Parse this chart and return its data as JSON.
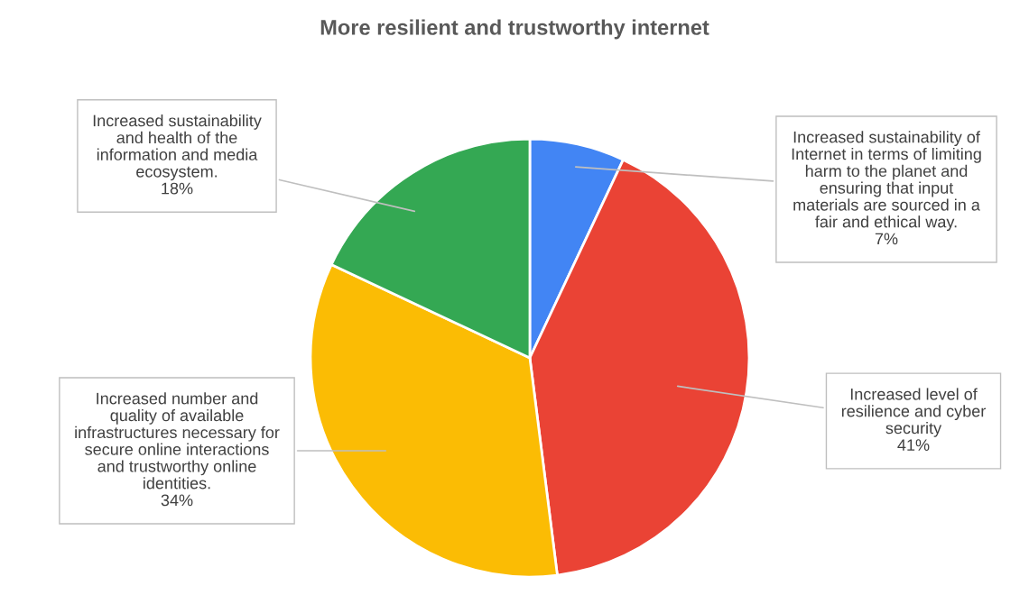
{
  "chart_data": {
    "type": "pie",
    "title": "More resilient and trustworthy internet",
    "categories": [
      "Increased sustainability of\nInternet in terms of limiting\nharm to the planet and\nensuring that input\nmaterials are sourced in a\nfair and ethical way.",
      "Increased level of\nresilience and cyber\nsecurity",
      "Increased number and\nquality of available\ninfrastructures necessary for\nsecure online interactions\nand trustworthy online\nidentities.",
      "Increased sustainability\nand health of the\ninformation and media\necosystem."
    ],
    "values": [
      7,
      41,
      34,
      18
    ],
    "colors": [
      "#4285f4",
      "#ea4335",
      "#fbbc04",
      "#34a853"
    ],
    "value_labels": [
      "7%",
      "41%",
      "34%",
      "18%"
    ],
    "legend": false
  }
}
